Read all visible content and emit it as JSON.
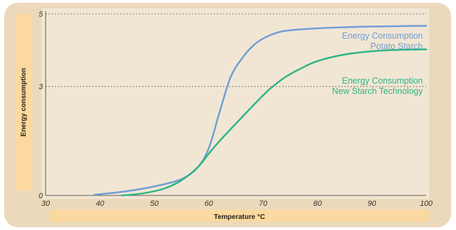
{
  "chart_data": {
    "type": "line",
    "title": "",
    "xlabel": "Temperature °C",
    "ylabel": "Energy consumption",
    "xlim": [
      30,
      100
    ],
    "ylim": [
      0,
      5
    ],
    "x_ticks": [
      "30",
      "40",
      "50",
      "60",
      "70",
      "80",
      "90",
      "100"
    ],
    "y_ticks": [
      "0",
      "3",
      "5"
    ],
    "y_tick_values": [
      0,
      3,
      5
    ],
    "grid": "dotted horizontal lines at 3 and 5",
    "legend": "inline labels at right",
    "series": [
      {
        "name_lines": [
          "Energy Consumption",
          "Potato Starch"
        ],
        "color": "#6f9ed6",
        "x": [
          39,
          45,
          50,
          55,
          58,
          60,
          62,
          64,
          66,
          68,
          70,
          73,
          76,
          80,
          85,
          90,
          95,
          100
        ],
        "y": [
          0.02,
          0.12,
          0.25,
          0.45,
          0.78,
          1.3,
          2.3,
          3.25,
          3.75,
          4.1,
          4.32,
          4.5,
          4.56,
          4.6,
          4.63,
          4.65,
          4.66,
          4.67
        ]
      },
      {
        "name_lines": [
          "Energy Consumption",
          "New Starch Technology"
        ],
        "color": "#2fb487",
        "x": [
          44,
          48,
          52,
          55,
          58,
          60,
          62,
          65,
          68,
          71,
          74,
          77,
          80,
          85,
          90,
          95,
          100
        ],
        "y": [
          0.0,
          0.06,
          0.2,
          0.42,
          0.78,
          1.15,
          1.5,
          1.98,
          2.45,
          2.9,
          3.25,
          3.5,
          3.7,
          3.88,
          3.97,
          4.01,
          4.02
        ]
      }
    ]
  }
}
